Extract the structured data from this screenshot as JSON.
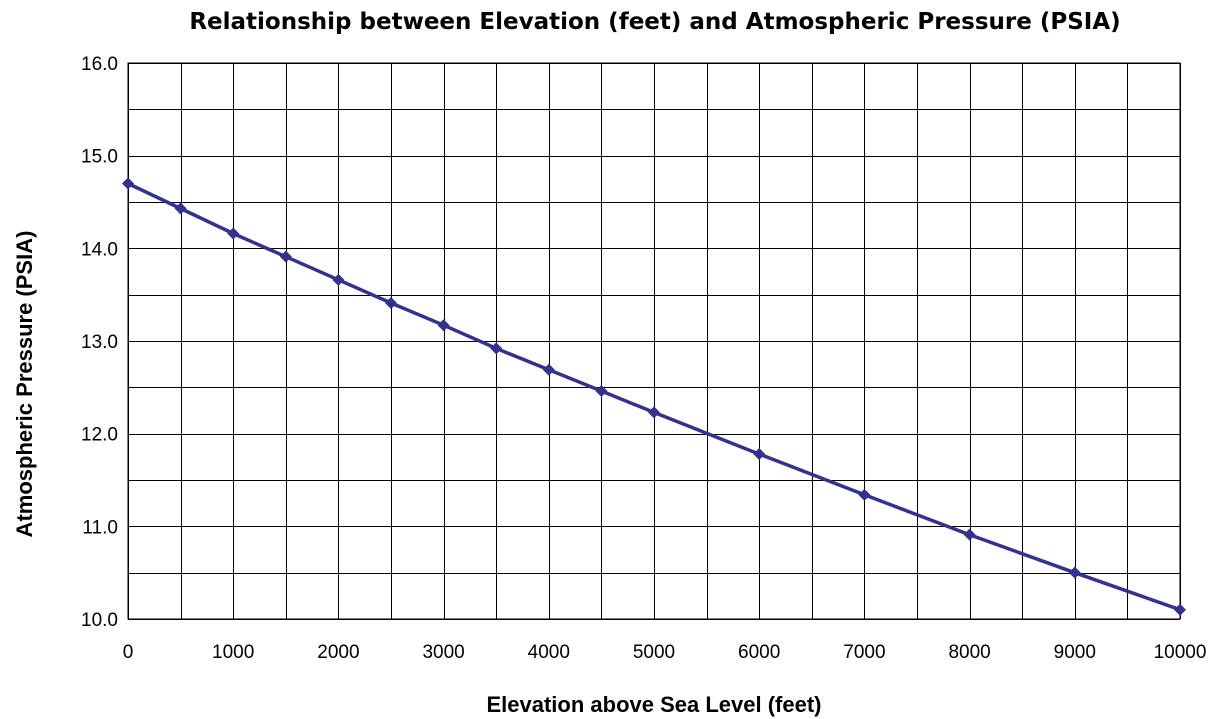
{
  "chart_data": {
    "type": "line",
    "title": "Relationship between Elevation (feet) and Atmospheric Pressure (PSIA)",
    "xlabel": "Elevation above Sea Level (feet)",
    "ylabel": "Atmospheric Pressure (PSIA)",
    "xlim": [
      0,
      10000
    ],
    "ylim": [
      10.0,
      16.0
    ],
    "x_ticks": [
      0,
      1000,
      2000,
      3000,
      4000,
      5000,
      6000,
      7000,
      8000,
      9000,
      10000
    ],
    "x_tick_labels": [
      "0",
      "1000",
      "2000",
      "3000",
      "4000",
      "5000",
      "6000",
      "7000",
      "8000",
      "9000",
      "10000"
    ],
    "y_ticks": [
      10.0,
      11.0,
      12.0,
      13.0,
      14.0,
      15.0,
      16.0
    ],
    "y_tick_labels": [
      "10.0",
      "11.0",
      "12.0",
      "13.0",
      "14.0",
      "15.0",
      "16.0"
    ],
    "x_minor_grid_step": 500,
    "y_minor_grid_step": 0.5,
    "grid": true,
    "legend": "none",
    "series": [
      {
        "color": "#33338f",
        "marker": "diamond",
        "x": [
          0,
          500,
          1000,
          1500,
          2000,
          2500,
          3000,
          3500,
          4000,
          4500,
          5000,
          6000,
          7000,
          8000,
          9000,
          10000
        ],
        "y": [
          14.7,
          14.43,
          14.16,
          13.91,
          13.66,
          13.41,
          13.17,
          12.92,
          12.69,
          12.46,
          12.23,
          11.78,
          11.34,
          10.91,
          10.5,
          10.1
        ]
      }
    ]
  }
}
